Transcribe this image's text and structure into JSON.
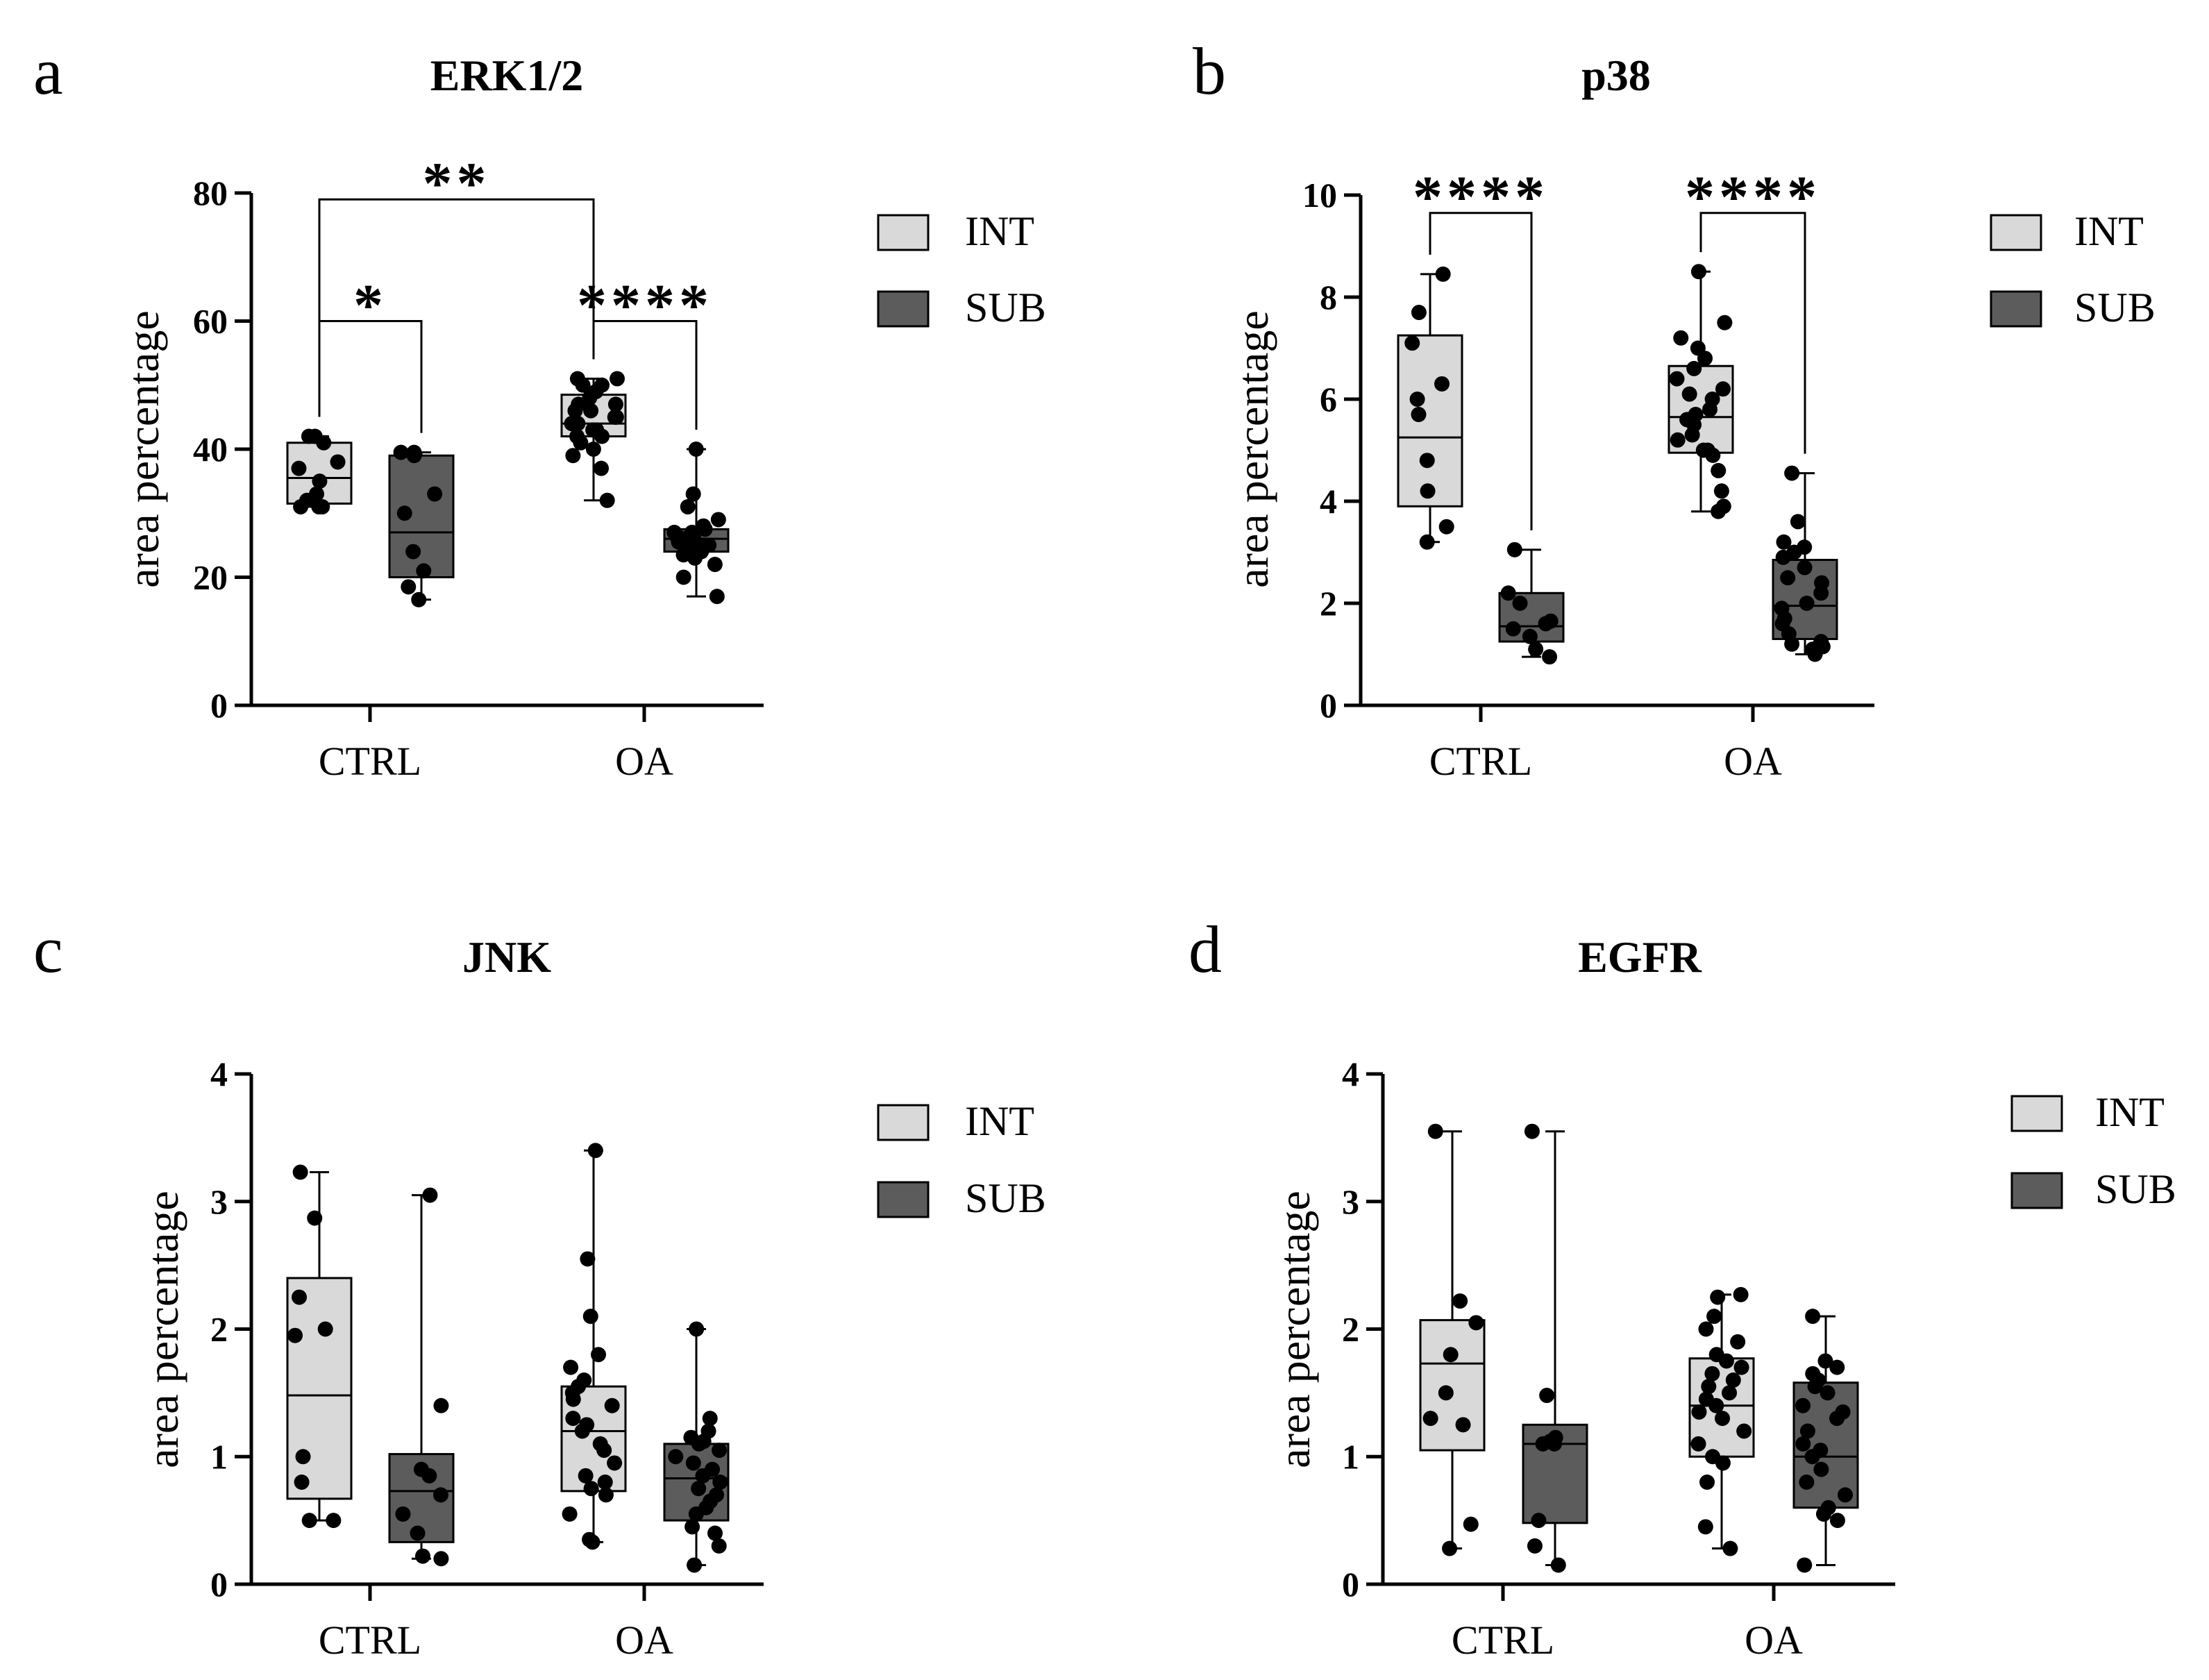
{
  "colors": {
    "int_fill": "#d9d9d9",
    "sub_fill": "#5c5c5c",
    "stroke": "#000000",
    "point": "#000000"
  },
  "legend": {
    "int_label": "INT",
    "sub_label": "SUB"
  },
  "chart_data": [
    {
      "panel": "a",
      "type": "box",
      "title": "ERK1/2",
      "ylabel": "area percentage",
      "xlabel": "",
      "ylim": [
        0,
        80
      ],
      "yticks": [
        0,
        20,
        40,
        60,
        80
      ],
      "categories": [
        "CTRL",
        "OA"
      ],
      "series": [
        {
          "name": "INT",
          "boxes": [
            {
              "group": "CTRL",
              "min": 31,
              "q1": 31.5,
              "median": 35.5,
              "q3": 41,
              "max": 42,
              "points": [
                31,
                31,
                31,
                32,
                33,
                35,
                37,
                38,
                41,
                42,
                42
              ]
            },
            {
              "group": "OA",
              "min": 32,
              "q1": 42,
              "median": 44,
              "q3": 48.5,
              "max": 51,
              "points": [
                32,
                37,
                39,
                40,
                41,
                42,
                42,
                43,
                43,
                44,
                44,
                45,
                45,
                46,
                46,
                47,
                47,
                48,
                49,
                50,
                50,
                51,
                51
              ]
            }
          ]
        },
        {
          "name": "SUB",
          "boxes": [
            {
              "group": "CTRL",
              "min": 16.5,
              "q1": 20,
              "median": 27,
              "q3": 39,
              "max": 39.5,
              "points": [
                16.5,
                18.5,
                21,
                24,
                30,
                33,
                39,
                39.5,
                39.5
              ]
            },
            {
              "group": "OA",
              "min": 17,
              "q1": 24,
              "median": 26,
              "q3": 27.5,
              "max": 40,
              "points": [
                17,
                20,
                22,
                23,
                23.5,
                24,
                24.5,
                25,
                25,
                25.5,
                26,
                26,
                26.5,
                27,
                27,
                27.5,
                28,
                29,
                31,
                33,
                40
              ]
            }
          ]
        }
      ],
      "significance": [
        {
          "label": "**",
          "from": "CTRL-INT",
          "to": "OA-INT",
          "y": 79
        },
        {
          "label": "*",
          "from": "CTRL-INT",
          "to": "CTRL-SUB",
          "y": 60
        },
        {
          "label": "****",
          "from": "OA-INT",
          "to": "OA-SUB",
          "y": 60
        }
      ]
    },
    {
      "panel": "b",
      "type": "box",
      "title": "p38",
      "ylabel": "area percentage",
      "xlabel": "",
      "ylim": [
        0,
        10
      ],
      "yticks": [
        0,
        2,
        4,
        6,
        8,
        10
      ],
      "categories": [
        "CTRL",
        "OA"
      ],
      "series": [
        {
          "name": "INT",
          "boxes": [
            {
              "group": "CTRL",
              "min": 3.2,
              "q1": 3.9,
              "median": 5.25,
              "q3": 7.25,
              "max": 8.45,
              "points": [
                3.2,
                3.5,
                4.2,
                4.8,
                5.7,
                6.0,
                6.3,
                7.1,
                7.7,
                8.45
              ]
            },
            {
              "group": "OA",
              "min": 3.8,
              "q1": 4.95,
              "median": 5.65,
              "q3": 6.65,
              "max": 8.5,
              "points": [
                3.8,
                3.9,
                4.2,
                4.6,
                4.9,
                5.0,
                5.0,
                5.2,
                5.3,
                5.5,
                5.6,
                5.7,
                5.8,
                6.0,
                6.1,
                6.2,
                6.4,
                6.6,
                6.8,
                7.0,
                7.2,
                7.5,
                8.5
              ]
            }
          ]
        },
        {
          "name": "SUB",
          "boxes": [
            {
              "group": "CTRL",
              "min": 0.95,
              "q1": 1.25,
              "median": 1.55,
              "q3": 2.2,
              "max": 3.05,
              "points": [
                0.95,
                1.1,
                1.35,
                1.5,
                1.6,
                1.65,
                2.0,
                2.2,
                3.05
              ]
            },
            {
              "group": "OA",
              "min": 1.0,
              "q1": 1.3,
              "median": 1.95,
              "q3": 2.85,
              "max": 4.55,
              "points": [
                1.0,
                1.05,
                1.1,
                1.15,
                1.2,
                1.25,
                1.4,
                1.6,
                1.7,
                1.9,
                2.0,
                2.2,
                2.4,
                2.5,
                2.7,
                2.9,
                3.0,
                3.1,
                3.2,
                3.6,
                4.55
              ]
            }
          ]
        }
      ],
      "significance": [
        {
          "label": "****",
          "from": "CTRL-INT",
          "to": "CTRL-SUB",
          "y": 9.65
        },
        {
          "label": "****",
          "from": "OA-INT",
          "to": "OA-SUB",
          "y": 9.65
        }
      ]
    },
    {
      "panel": "c",
      "type": "box",
      "title": "JNK",
      "ylabel": "area percentage",
      "xlabel": "",
      "ylim": [
        0,
        4
      ],
      "yticks": [
        0,
        1,
        2,
        3,
        4
      ],
      "categories": [
        "CTRL",
        "OA"
      ],
      "series": [
        {
          "name": "INT",
          "boxes": [
            {
              "group": "CTRL",
              "min": 0.5,
              "q1": 0.67,
              "median": 1.48,
              "q3": 2.4,
              "max": 3.23,
              "points": [
                0.5,
                0.5,
                0.8,
                1.0,
                1.95,
                2.0,
                2.25,
                2.87,
                3.23
              ]
            },
            {
              "group": "OA",
              "min": 0.33,
              "q1": 0.73,
              "median": 1.2,
              "q3": 1.55,
              "max": 3.4,
              "points": [
                0.33,
                0.35,
                0.55,
                0.7,
                0.75,
                0.8,
                0.85,
                0.95,
                1.05,
                1.1,
                1.2,
                1.25,
                1.3,
                1.4,
                1.45,
                1.5,
                1.55,
                1.6,
                1.7,
                1.8,
                2.1,
                2.55,
                3.4
              ]
            }
          ]
        },
        {
          "name": "SUB",
          "boxes": [
            {
              "group": "CTRL",
              "min": 0.2,
              "q1": 0.33,
              "median": 0.73,
              "q3": 1.02,
              "max": 3.05,
              "points": [
                0.2,
                0.22,
                0.4,
                0.55,
                0.7,
                0.85,
                0.9,
                1.4,
                3.05
              ]
            },
            {
              "group": "OA",
              "min": 0.15,
              "q1": 0.5,
              "median": 0.83,
              "q3": 1.1,
              "max": 2.0,
              "points": [
                0.15,
                0.3,
                0.4,
                0.45,
                0.55,
                0.6,
                0.65,
                0.7,
                0.75,
                0.8,
                0.85,
                0.9,
                0.95,
                1.0,
                1.05,
                1.1,
                1.12,
                1.15,
                1.2,
                1.3,
                2.0
              ]
            }
          ]
        }
      ],
      "significance": []
    },
    {
      "panel": "d",
      "type": "box",
      "title": "EGFR",
      "ylabel": "area percentage",
      "xlabel": "",
      "ylim": [
        0,
        4
      ],
      "yticks": [
        0,
        1,
        2,
        3,
        4
      ],
      "categories": [
        "CTRL",
        "OA"
      ],
      "series": [
        {
          "name": "INT",
          "boxes": [
            {
              "group": "CTRL",
              "min": 0.28,
              "q1": 1.05,
              "median": 1.73,
              "q3": 2.07,
              "max": 3.55,
              "points": [
                0.28,
                0.47,
                1.25,
                1.3,
                1.5,
                1.8,
                2.05,
                2.22,
                3.55
              ]
            },
            {
              "group": "OA",
              "min": 0.28,
              "q1": 1.0,
              "median": 1.4,
              "q3": 1.77,
              "max": 2.27,
              "points": [
                0.28,
                0.45,
                0.8,
                0.95,
                1.0,
                1.1,
                1.2,
                1.3,
                1.35,
                1.4,
                1.45,
                1.5,
                1.55,
                1.6,
                1.65,
                1.7,
                1.75,
                1.8,
                1.9,
                2.0,
                2.1,
                2.25,
                2.27
              ]
            }
          ]
        },
        {
          "name": "SUB",
          "boxes": [
            {
              "group": "CTRL",
              "min": 0.15,
              "q1": 0.48,
              "median": 1.1,
              "q3": 1.25,
              "max": 3.55,
              "points": [
                0.15,
                0.3,
                0.5,
                1.1,
                1.1,
                1.12,
                1.15,
                1.48,
                3.55
              ]
            },
            {
              "group": "OA",
              "min": 0.15,
              "q1": 0.6,
              "median": 1.0,
              "q3": 1.58,
              "max": 2.1,
              "points": [
                0.15,
                0.5,
                0.55,
                0.6,
                0.7,
                0.8,
                0.9,
                1.0,
                1.05,
                1.1,
                1.2,
                1.3,
                1.35,
                1.4,
                1.5,
                1.55,
                1.6,
                1.65,
                1.7,
                1.75,
                2.1
              ]
            }
          ]
        }
      ],
      "significance": []
    }
  ]
}
